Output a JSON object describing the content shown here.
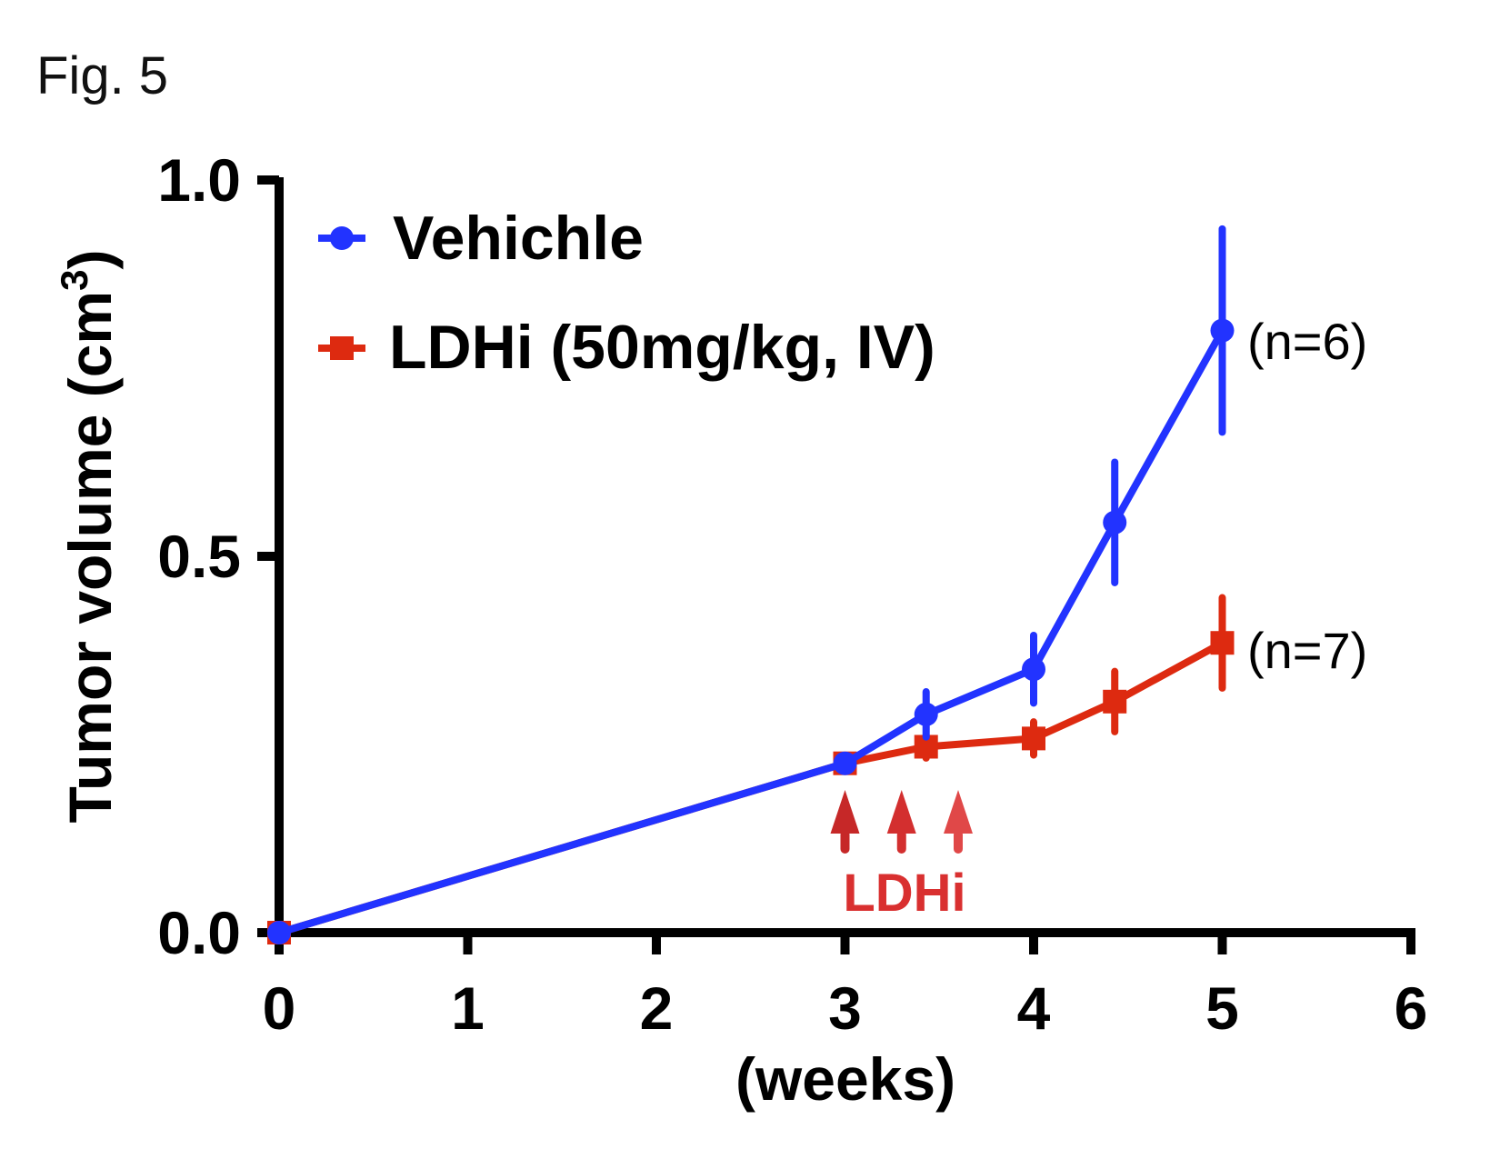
{
  "figure_label": "Fig. 5",
  "chart_data": {
    "type": "line",
    "xlabel": "(weeks)",
    "ylabel": "Tumor volume (cm",
    "ylabel_superscript": "3",
    "ylabel_close": ")",
    "xlim": [
      0,
      6
    ],
    "ylim": [
      0,
      1.0
    ],
    "x_ticks": [
      0,
      1,
      2,
      3,
      4,
      5,
      6
    ],
    "x_tick_labels": [
      "0",
      "1",
      "2",
      "3",
      "4",
      "5",
      "6"
    ],
    "y_ticks": [
      0.0,
      0.5,
      1.0
    ],
    "y_tick_labels": [
      "0.0",
      "0.5",
      "1.0"
    ],
    "legend_position": "top-left",
    "series": [
      {
        "name": "Vehichle",
        "color": "#2233ff",
        "marker": "circle",
        "x": [
          0,
          3,
          3.43,
          4,
          4.43,
          5
        ],
        "y": [
          0.0,
          0.225,
          0.29,
          0.35,
          0.545,
          0.8
        ],
        "err": [
          0.0,
          0.01,
          0.03,
          0.045,
          0.08,
          0.135
        ],
        "end_label": "(n=6)"
      },
      {
        "name": "LDHi (50mg/kg, IV)",
        "color": "#dd2a10",
        "marker": "square",
        "x": [
          0,
          3,
          3.43,
          4,
          4.43,
          5
        ],
        "y": [
          0.0,
          0.225,
          0.247,
          0.258,
          0.307,
          0.385
        ],
        "err": [
          0.0,
          0.01,
          0.015,
          0.022,
          0.04,
          0.06
        ],
        "end_label": "(n=7)"
      }
    ],
    "annotation": {
      "text": "LDHi",
      "color": "#d93030",
      "arrow_x": [
        3,
        3.3,
        3.6
      ],
      "arrow_colors": [
        "#c62828",
        "#d32f2f",
        "#e04848"
      ]
    }
  }
}
